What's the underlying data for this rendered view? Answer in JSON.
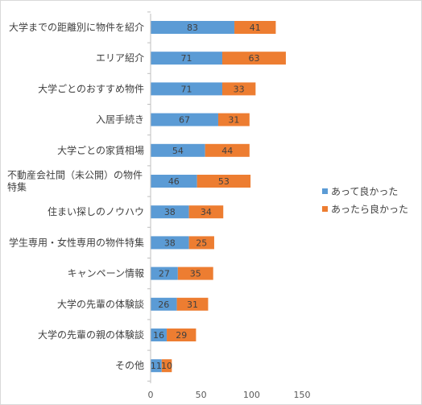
{
  "chart_data": {
    "type": "bar",
    "orientation": "horizontal",
    "stacked": true,
    "categories": [
      "大学までの距離別に物件を紹介",
      "エリア紹介",
      "大学ごとのおすすめ物件",
      "入居手続き",
      "大学ごとの家賃相場",
      "不動産会社間（未公開）の物件特集",
      "住まい探しのノウハウ",
      "学生専用・女性専用の物件特集",
      "キャンペーン情報",
      "大学の先輩の体験談",
      "大学の先輩の親の体験談",
      "その他"
    ],
    "category_display_lines": [
      [
        "大学までの距離別に物件を紹介"
      ],
      [
        "エリア紹介"
      ],
      [
        "大学ごとのおすすめ物件"
      ],
      [
        "入居手続き"
      ],
      [
        "大学ごとの家賃相場"
      ],
      [
        "不動産会社間（未公開）の物件",
        "特集"
      ],
      [
        "住まい探しのノウハウ"
      ],
      [
        "学生専用・女性専用の物件特集"
      ],
      [
        "キャンペーン情報"
      ],
      [
        "大学の先輩の体験談"
      ],
      [
        "大学の先輩の親の体験談"
      ],
      [
        "その他"
      ]
    ],
    "series": [
      {
        "name": "あって良かった",
        "color": "#5b9bd5",
        "values": [
          83,
          71,
          71,
          67,
          54,
          46,
          38,
          38,
          27,
          26,
          16,
          11
        ]
      },
      {
        "name": "あったら良かった",
        "color": "#ed7d31",
        "values": [
          41,
          63,
          33,
          31,
          44,
          53,
          34,
          25,
          35,
          31,
          29,
          10
        ]
      }
    ],
    "xlim": [
      0,
      150
    ],
    "xticks": [
      0,
      50,
      100,
      150
    ],
    "title": "",
    "xlabel": "",
    "ylabel": "",
    "grid": false,
    "legend_position": "right",
    "data_labels": true
  }
}
